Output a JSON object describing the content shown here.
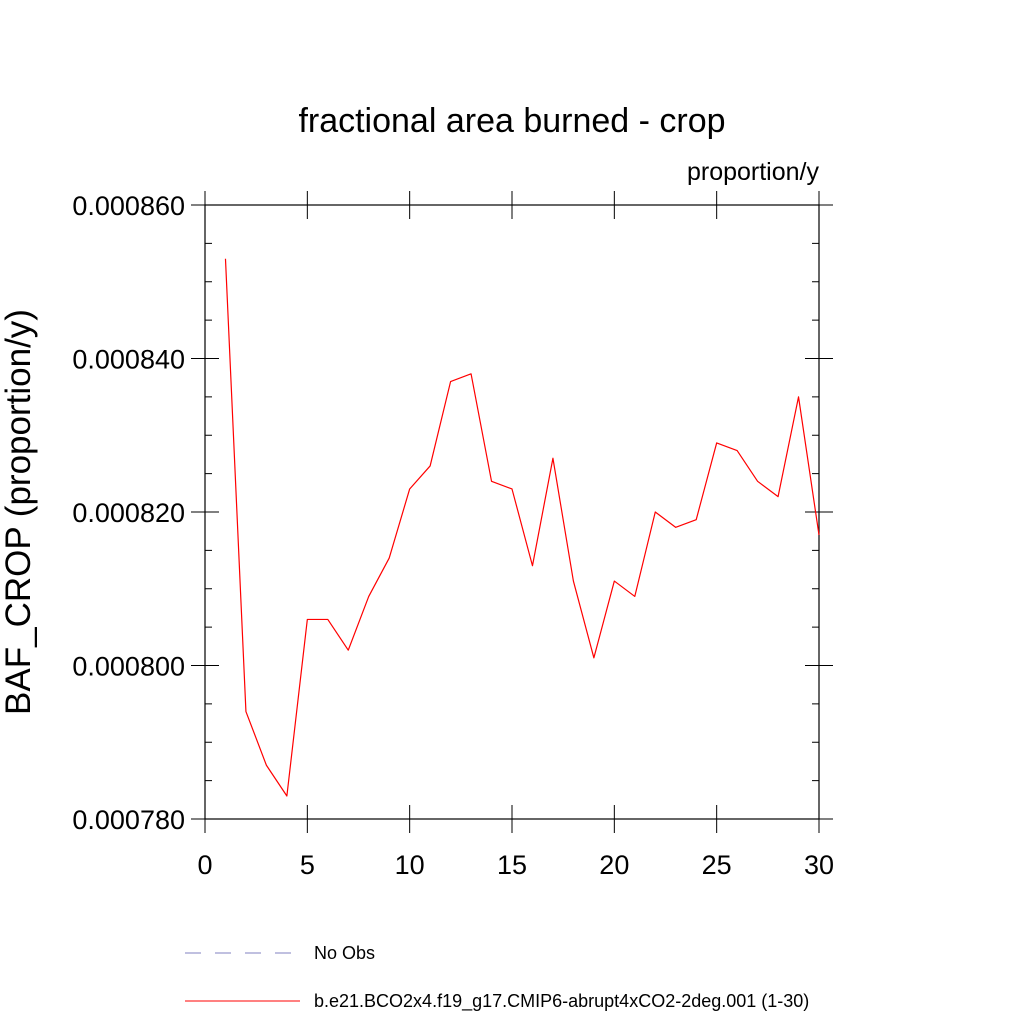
{
  "chart_data": {
    "type": "line",
    "title": "fractional area burned - crop",
    "units_label": "proportion/y",
    "ylabel": "BAF_CROP  (proportion/y)",
    "xlabel": "",
    "xlim": [
      0,
      30
    ],
    "ylim": [
      0.00078,
      0.00086
    ],
    "x_ticks": [
      0,
      5,
      10,
      15,
      20,
      25,
      30
    ],
    "x_tick_labels": [
      "0",
      "5",
      "10",
      "15",
      "20",
      "25",
      "30"
    ],
    "y_ticks": [
      0.00078,
      0.0008,
      0.00082,
      0.00084,
      0.00086
    ],
    "y_tick_labels": [
      "0.000780",
      "0.000800",
      "0.000820",
      "0.000840",
      "0.000860"
    ],
    "grid": false,
    "legend_position": "bottom",
    "legend": [
      {
        "label": "No Obs",
        "color": "#8080c0",
        "style": "dashed"
      },
      {
        "label": "b.e21.BCO2x4.f19_g17.CMIP6-abrupt4xCO2-2deg.001 (1-30)",
        "color": "#ff0000",
        "style": "solid"
      }
    ],
    "series": [
      {
        "name": "b.e21.BCO2x4.f19_g17.CMIP6-abrupt4xCO2-2deg.001 (1-30)",
        "color": "#ff0000",
        "x": [
          1,
          2,
          3,
          4,
          5,
          6,
          7,
          8,
          9,
          10,
          11,
          12,
          13,
          14,
          15,
          16,
          17,
          18,
          19,
          20,
          21,
          22,
          23,
          24,
          25,
          26,
          27,
          28,
          29,
          30
        ],
        "values": [
          0.000853,
          0.000794,
          0.000787,
          0.000783,
          0.000806,
          0.000806,
          0.000802,
          0.000809,
          0.000814,
          0.000823,
          0.000826,
          0.000837,
          0.000838,
          0.000824,
          0.000823,
          0.000813,
          0.000827,
          0.000811,
          0.000801,
          0.000811,
          0.000809,
          0.00082,
          0.000818,
          0.000819,
          0.000829,
          0.000828,
          0.000824,
          0.000822,
          0.000835,
          0.000817
        ]
      }
    ]
  }
}
